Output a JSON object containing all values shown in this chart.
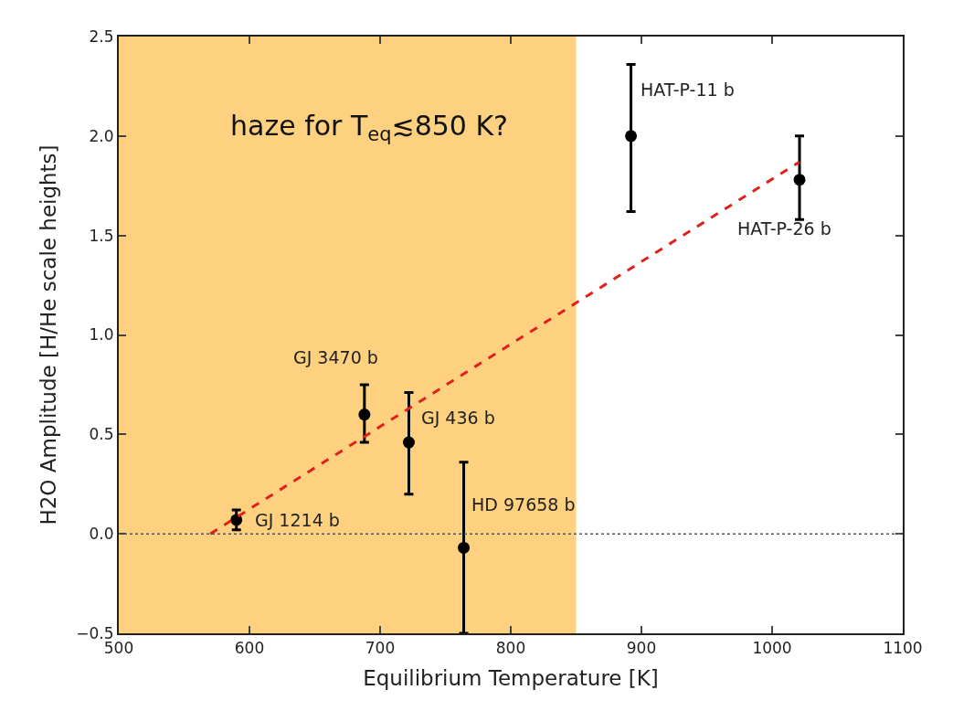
{
  "chart_data": {
    "type": "scatter",
    "xlabel": "Equilibrium Temperature [K]",
    "ylabel": "H2O Amplitude [H/He scale heights]",
    "xlim": [
      500,
      1100
    ],
    "xticks": [
      500,
      600,
      700,
      800,
      900,
      1000,
      1100
    ],
    "ylim": [
      -0.5,
      2.5
    ],
    "yticks": [
      {
        "value": -0.5,
        "label": "−0.5"
      },
      {
        "value": 0,
        "label": "0.0"
      },
      {
        "value": 0.5,
        "label": "0.5"
      },
      {
        "value": 1,
        "label": "1.0"
      },
      {
        "value": 1.5,
        "label": "1.5"
      },
      {
        "value": 2,
        "label": "2.0"
      },
      {
        "value": 2.5,
        "label": "2.5"
      }
    ],
    "grid": false,
    "legend": false,
    "series": [
      {
        "color": "#000000",
        "marker": "circle",
        "x": [
          590,
          688,
          722,
          764,
          892,
          1021
        ],
        "values": [
          0.07,
          0.6,
          0.46,
          -0.07,
          2.0,
          1.78
        ],
        "errors": [
          [
            0.02,
            0.12
          ],
          [
            0.46,
            0.75
          ],
          [
            0.2,
            0.71
          ],
          [
            -0.5,
            0.36
          ],
          [
            1.62,
            2.36
          ],
          [
            1.58,
            2.0
          ]
        ]
      },
      {
        "type": "line",
        "color": "#e0201b",
        "line_style": "dashed",
        "x": [
          570,
          1021
        ],
        "values": [
          0,
          1.87
        ]
      }
    ],
    "bands": [
      {
        "axis": "x",
        "from": 500,
        "to": 850,
        "color": "#fdd17f"
      }
    ],
    "ref_lines": [
      {
        "axis": "y",
        "value": 0,
        "color": "#555555",
        "line_style": "dotted"
      }
    ],
    "annotations": [
      {
        "text": "GJ 1214 b",
        "x": 590,
        "y": 0.07
      },
      {
        "text": "GJ 3470 b",
        "x": 688,
        "y": 0.6
      },
      {
        "text": "GJ 436 b",
        "x": 722,
        "y": 0.46
      },
      {
        "text": "HD 97658 b",
        "x": 764,
        "y": -0.07
      },
      {
        "text": "HAT-P-11 b",
        "x": 892,
        "y": 2.0
      },
      {
        "text": "HAT-P-26 b",
        "x": 1021,
        "y": 1.78
      },
      "haze for T$_{eq}$≲850 K?"
    ]
  }
}
